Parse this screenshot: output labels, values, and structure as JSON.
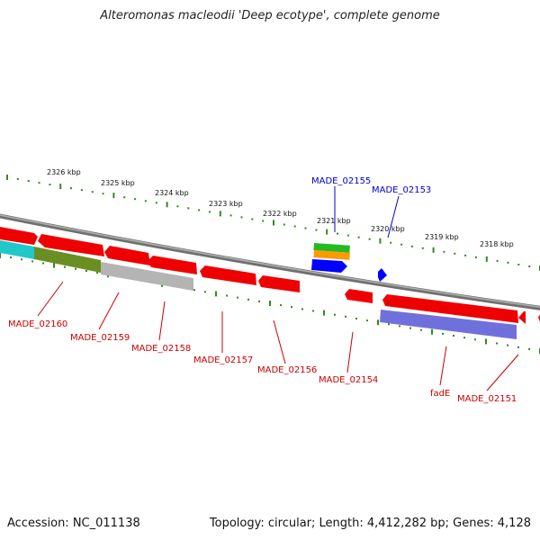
{
  "title": "Alteromonas macleodii 'Deep ecotype', complete genome",
  "footer": {
    "accession": "Accession: NC_011138",
    "summary": "Topology: circular; Length: 4,412,282 bp; Genes: 4,128"
  },
  "colors": {
    "gene_red": "#ff0000",
    "label_red": "#cc0000",
    "label_blue": "#0000cc",
    "tick_green": "#2e8b1e",
    "backbone": "#888888",
    "cyan": "#20c8c8",
    "olive": "#6b8e23",
    "gray": "#b4b4b4",
    "blue": "#0000ff",
    "green": "#22bb22",
    "orange": "#ff9900",
    "purple": "#7070dd"
  },
  "kbp_ticks": [
    {
      "label": "2326 kbp"
    },
    {
      "label": "2325 kbp"
    },
    {
      "label": "2324 kbp"
    },
    {
      "label": "2323 kbp"
    },
    {
      "label": "2322 kbp"
    },
    {
      "label": "2321 kbp"
    },
    {
      "label": "2320 kbp"
    },
    {
      "label": "2319 kbp"
    },
    {
      "label": "2318 kbp"
    }
  ],
  "gene_labels": [
    {
      "text": "MADE_02155",
      "strand": "top"
    },
    {
      "text": "MADE_02153",
      "strand": "top"
    },
    {
      "text": "MADE_02160",
      "strand": "bottom"
    },
    {
      "text": "MADE_02159",
      "strand": "bottom"
    },
    {
      "text": "MADE_02158",
      "strand": "bottom"
    },
    {
      "text": "MADE_02157",
      "strand": "bottom"
    },
    {
      "text": "MADE_02156",
      "strand": "bottom"
    },
    {
      "text": "MADE_02154",
      "strand": "bottom"
    },
    {
      "text": "fadE",
      "strand": "bottom"
    },
    {
      "text": "MADE_02151",
      "strand": "bottom"
    }
  ]
}
